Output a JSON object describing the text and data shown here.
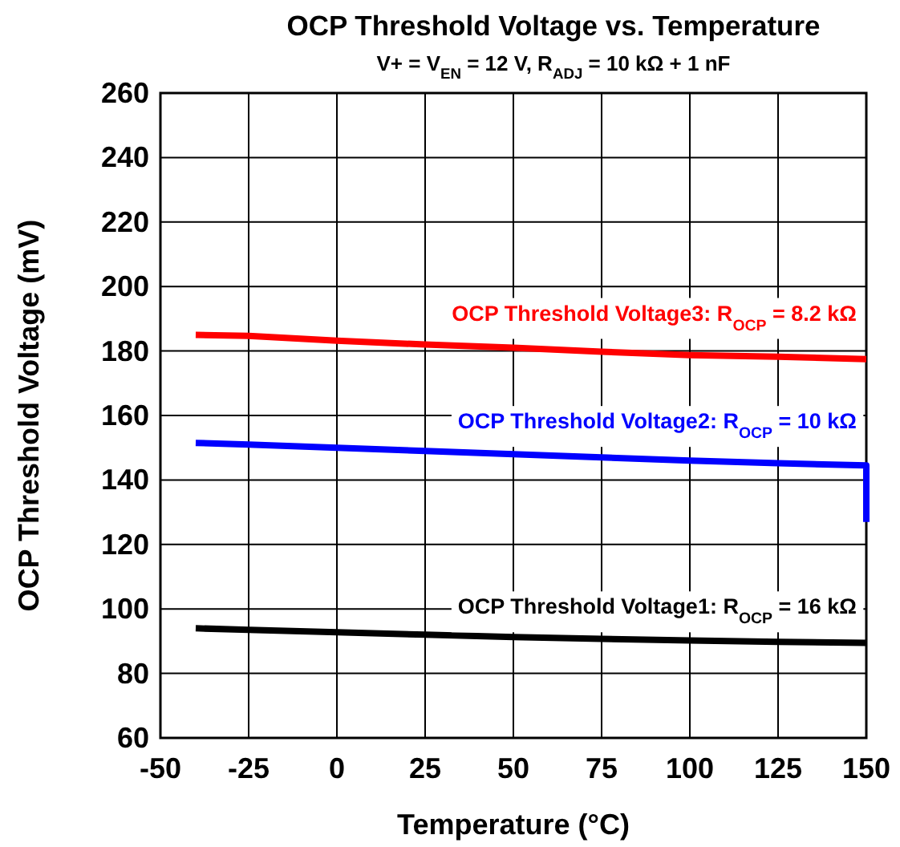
{
  "chart_data": {
    "type": "line",
    "title": "OCP Threshold Voltage vs. Temperature",
    "subtitle": "V+ = V$_{EN}$ = 12 V, R$_{ADJ}$ = 10 kΩ + 1 nF",
    "xlabel": "Temperature (°C)",
    "ylabel": "OCP Threshold Voltage (mV)",
    "xlim": [
      -50,
      150
    ],
    "xticks": [
      -50,
      -25,
      0,
      25,
      50,
      75,
      100,
      125,
      150
    ],
    "ylim": [
      60,
      260
    ],
    "yticks": [
      60,
      80,
      100,
      120,
      140,
      160,
      180,
      200,
      220,
      240,
      260
    ],
    "grid": true,
    "legend": false,
    "line_style": "solid",
    "marker": "none",
    "series": [
      {
        "name": "OCP Threshold Voltage1: R$_{OCP}$ = 16 kΩ",
        "color": "#000000",
        "x": [
          -40,
          -25,
          0,
          25,
          50,
          75,
          100,
          125,
          150
        ],
        "values": [
          94,
          93.5,
          92.8,
          92,
          91.3,
          90.7,
          90.2,
          89.8,
          89.5
        ]
      },
      {
        "name": "OCP Threshold Voltage2: R$_{OCP}$ = 10 kΩ",
        "color": "#0000ff",
        "x": [
          -40,
          -25,
          0,
          25,
          50,
          75,
          100,
          125,
          150,
          150
        ],
        "values": [
          151.5,
          151,
          150,
          149,
          148,
          147,
          146,
          145.2,
          144.5,
          127
        ]
      },
      {
        "name": "OCP Threshold Voltage3: R$_{OCP}$ = 8.2 kΩ",
        "color": "#ff0000",
        "x": [
          -40,
          -25,
          0,
          25,
          50,
          75,
          100,
          125,
          150
        ],
        "values": [
          185,
          184.7,
          183.2,
          182,
          181,
          179.8,
          178.7,
          178.2,
          177.5
        ]
      }
    ]
  }
}
